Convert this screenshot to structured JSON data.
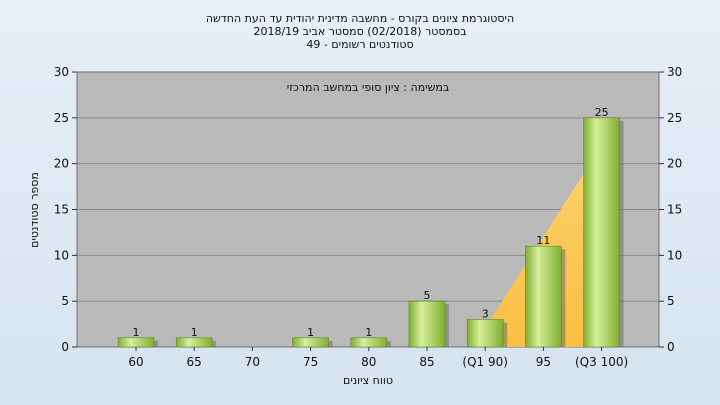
{
  "chart_data": {
    "type": "bar",
    "title_lines": [
      "היסטוגרמת ציונים בקורס - מחשבה מדינית יהודית עד העת החדשה",
      "בסמסטר  (02/2018)  סמסטר אביב 2018/19",
      "סטודנטים רשומים - 49"
    ],
    "annotation": "במשימה : ציון סופי במחשב המרכזי",
    "xlabel": "טווח ציונים",
    "ylabel": "מספר סטודנטים",
    "categories": [
      "60",
      "65",
      "70",
      "75",
      "80",
      "85",
      "(Q1 90)",
      "95",
      "(Q3 100)"
    ],
    "values": [
      1,
      1,
      0,
      1,
      1,
      5,
      3,
      11,
      25
    ],
    "value_labels": [
      "1",
      "1",
      "",
      "1",
      "1",
      "5",
      "3",
      "11",
      "25"
    ],
    "ylim": [
      0,
      30
    ],
    "yticks": [
      0,
      5,
      10,
      15,
      20,
      25,
      30
    ],
    "grid": true,
    "highlight_area": {
      "description": "quartile band",
      "from_category": "(Q1 90)",
      "to_category": "(Q3 100)",
      "color": "#ffc34a"
    },
    "colors": {
      "bar_light": "#d7ef9b",
      "bar_dark": "#7fae2f",
      "plot_bg": "#b9b9b9",
      "gridline": "#8a8a8a"
    }
  }
}
